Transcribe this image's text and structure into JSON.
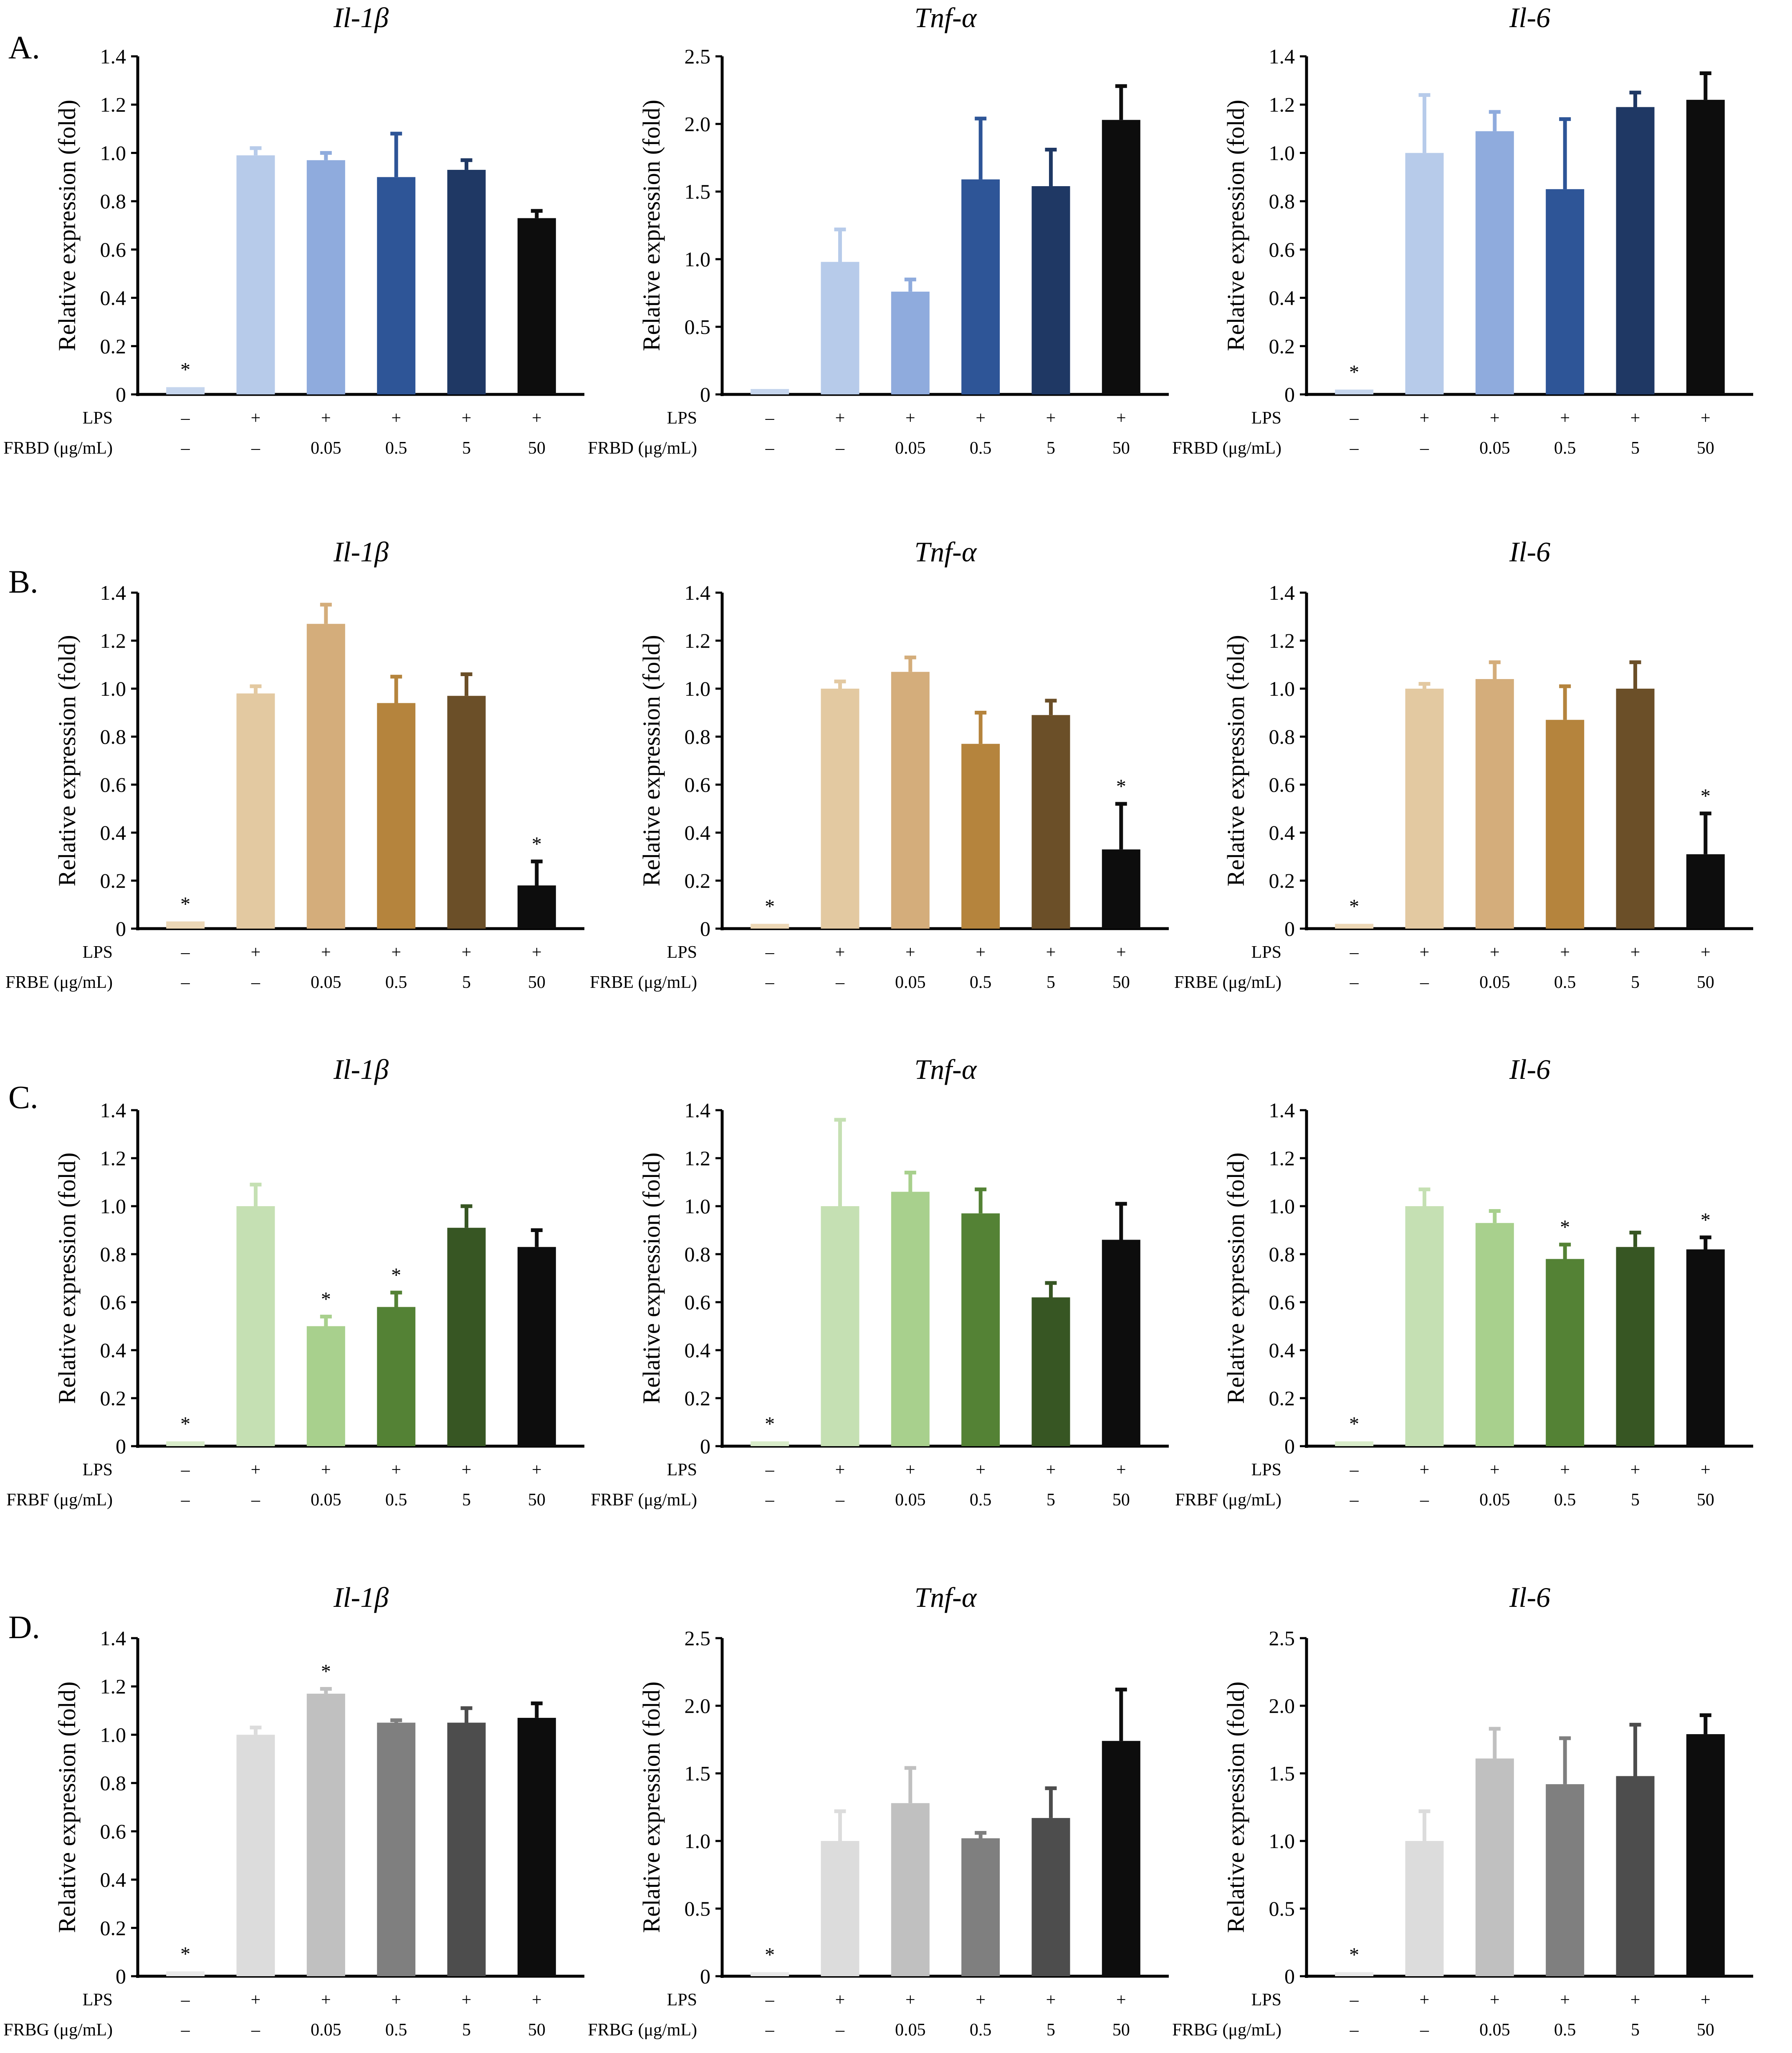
{
  "chart_data": [
    {
      "type": "bar",
      "panel": "A.",
      "title": "Il-1β",
      "ylabel": "Relative expression (fold)",
      "ylim": [
        0,
        1.4
      ],
      "yticks": [
        "0",
        "0.2",
        "0.4",
        "0.6",
        "0.8",
        "1.0",
        "1.2",
        "1.4"
      ],
      "rows": [
        {
          "label": "LPS",
          "marks": [
            "–",
            "+",
            "+",
            "+",
            "+",
            "+"
          ]
        },
        {
          "label": "FRBD (μg/mL)",
          "marks": [
            "–",
            "–",
            "0.05",
            "0.5",
            "5",
            "50"
          ]
        }
      ],
      "values": [
        0.03,
        0.99,
        0.97,
        0.9,
        0.93,
        0.73
      ],
      "errors": [
        0.0,
        0.03,
        0.03,
        0.18,
        0.04,
        0.03
      ],
      "colors": [
        "#c5d5ed",
        "#b7cbea",
        "#8fabdd",
        "#2e5597",
        "#1f3864",
        "#0d0d0d"
      ],
      "significant": [
        true,
        false,
        false,
        false,
        false,
        false
      ]
    },
    {
      "type": "bar",
      "panel": "",
      "title": "Tnf-α",
      "ylabel": "Relative expression (fold)",
      "ylim": [
        0,
        2.5
      ],
      "yticks": [
        "0",
        "0.5",
        "1.0",
        "1.5",
        "2.0",
        "2.5"
      ],
      "rows": [
        {
          "label": "LPS",
          "marks": [
            "–",
            "+",
            "+",
            "+",
            "+",
            "+"
          ]
        },
        {
          "label": "FRBD (μg/mL)",
          "marks": [
            "–",
            "–",
            "0.05",
            "0.5",
            "5",
            "50"
          ]
        }
      ],
      "values": [
        0.04,
        0.98,
        0.76,
        1.59,
        1.54,
        2.03
      ],
      "errors": [
        0.0,
        0.24,
        0.09,
        0.45,
        0.27,
        0.25
      ],
      "colors": [
        "#c5d5ed",
        "#b7cbea",
        "#8fabdd",
        "#2e5597",
        "#1f3864",
        "#0d0d0d"
      ],
      "significant": [
        false,
        false,
        false,
        false,
        false,
        false
      ]
    },
    {
      "type": "bar",
      "panel": "",
      "title": "Il-6",
      "ylabel": "Relative expression (fold)",
      "ylim": [
        0,
        1.4
      ],
      "yticks": [
        "0",
        "0.2",
        "0.4",
        "0.6",
        "0.8",
        "1.0",
        "1.2",
        "1.4"
      ],
      "rows": [
        {
          "label": "LPS",
          "marks": [
            "–",
            "+",
            "+",
            "+",
            "+",
            "+"
          ]
        },
        {
          "label": "FRBD (μg/mL)",
          "marks": [
            "–",
            "–",
            "0.05",
            "0.5",
            "5",
            "50"
          ]
        }
      ],
      "values": [
        0.02,
        1.0,
        1.09,
        0.85,
        1.19,
        1.22
      ],
      "errors": [
        0.0,
        0.24,
        0.08,
        0.29,
        0.06,
        0.11
      ],
      "colors": [
        "#c5d5ed",
        "#b7cbea",
        "#8fabdd",
        "#2e5597",
        "#1f3864",
        "#0d0d0d"
      ],
      "significant": [
        true,
        false,
        false,
        false,
        false,
        false
      ]
    },
    {
      "type": "bar",
      "panel": "B.",
      "title": "Il-1β",
      "ylabel": "Relative expression (fold)",
      "ylim": [
        0,
        1.4
      ],
      "yticks": [
        "0",
        "0.2",
        "0.4",
        "0.6",
        "0.8",
        "1.0",
        "1.2",
        "1.4"
      ],
      "rows": [
        {
          "label": "LPS",
          "marks": [
            "–",
            "+",
            "+",
            "+",
            "+",
            "+"
          ]
        },
        {
          "label": "FRBE (μg/mL)",
          "marks": [
            "–",
            "–",
            "0.05",
            "0.5",
            "5",
            "50"
          ]
        }
      ],
      "values": [
        0.03,
        0.98,
        1.27,
        0.94,
        0.97,
        0.18
      ],
      "errors": [
        0.0,
        0.03,
        0.08,
        0.11,
        0.09,
        0.1
      ],
      "colors": [
        "#ecd7b6",
        "#e3c9a1",
        "#d4ad7b",
        "#b5843d",
        "#6b4f28",
        "#0d0d0d"
      ],
      "significant": [
        true,
        false,
        false,
        false,
        false,
        true
      ]
    },
    {
      "type": "bar",
      "panel": "",
      "title": "Tnf-α",
      "ylabel": "Relative expression (fold)",
      "ylim": [
        0,
        1.4
      ],
      "yticks": [
        "0",
        "0.2",
        "0.4",
        "0.6",
        "0.8",
        "1.0",
        "1.2",
        "1.4"
      ],
      "rows": [
        {
          "label": "LPS",
          "marks": [
            "–",
            "+",
            "+",
            "+",
            "+",
            "+"
          ]
        },
        {
          "label": "FRBE (μg/mL)",
          "marks": [
            "–",
            "–",
            "0.05",
            "0.5",
            "5",
            "50"
          ]
        }
      ],
      "values": [
        0.02,
        1.0,
        1.07,
        0.77,
        0.89,
        0.33
      ],
      "errors": [
        0.0,
        0.03,
        0.06,
        0.13,
        0.06,
        0.19
      ],
      "colors": [
        "#ecd7b6",
        "#e3c9a1",
        "#d4ad7b",
        "#b5843d",
        "#6b4f28",
        "#0d0d0d"
      ],
      "significant": [
        true,
        false,
        false,
        false,
        false,
        true
      ]
    },
    {
      "type": "bar",
      "panel": "",
      "title": "Il-6",
      "ylabel": "Relative expression (fold)",
      "ylim": [
        0,
        1.4
      ],
      "yticks": [
        "0",
        "0.2",
        "0.4",
        "0.6",
        "0.8",
        "1.0",
        "1.2",
        "1.4"
      ],
      "rows": [
        {
          "label": "LPS",
          "marks": [
            "–",
            "+",
            "+",
            "+",
            "+",
            "+"
          ]
        },
        {
          "label": "FRBE (μg/mL)",
          "marks": [
            "–",
            "–",
            "0.05",
            "0.5",
            "5",
            "50"
          ]
        }
      ],
      "values": [
        0.02,
        1.0,
        1.04,
        0.87,
        1.0,
        0.31
      ],
      "errors": [
        0.0,
        0.02,
        0.07,
        0.14,
        0.11,
        0.17
      ],
      "colors": [
        "#ecd7b6",
        "#e3c9a1",
        "#d4ad7b",
        "#b5843d",
        "#6b4f28",
        "#0d0d0d"
      ],
      "significant": [
        true,
        false,
        false,
        false,
        false,
        true
      ]
    },
    {
      "type": "bar",
      "panel": "C.",
      "title": "Il-1β",
      "ylabel": "Relative expression (fold)",
      "ylim": [
        0,
        1.4
      ],
      "yticks": [
        "0",
        "0.2",
        "0.4",
        "0.6",
        "0.8",
        "1.0",
        "1.2",
        "1.4"
      ],
      "rows": [
        {
          "label": "LPS",
          "marks": [
            "–",
            "+",
            "+",
            "+",
            "+",
            "+"
          ]
        },
        {
          "label": "FRBF (μg/mL)",
          "marks": [
            "–",
            "–",
            "0.05",
            "0.5",
            "5",
            "50"
          ]
        }
      ],
      "values": [
        0.02,
        1.0,
        0.5,
        0.58,
        0.91,
        0.83
      ],
      "errors": [
        0.0,
        0.09,
        0.04,
        0.06,
        0.09,
        0.07
      ],
      "colors": [
        "#d8ecc9",
        "#c5e0b3",
        "#a8d08d",
        "#548235",
        "#375623",
        "#0d0d0d"
      ],
      "significant": [
        true,
        false,
        true,
        true,
        false,
        false
      ]
    },
    {
      "type": "bar",
      "panel": "",
      "title": "Tnf-α",
      "ylabel": "Relative expression (fold)",
      "ylim": [
        0,
        1.4
      ],
      "yticks": [
        "0",
        "0.2",
        "0.4",
        "0.6",
        "0.8",
        "1.0",
        "1.2",
        "1.4"
      ],
      "rows": [
        {
          "label": "LPS",
          "marks": [
            "–",
            "+",
            "+",
            "+",
            "+",
            "+"
          ]
        },
        {
          "label": "FRBF (μg/mL)",
          "marks": [
            "–",
            "–",
            "0.05",
            "0.5",
            "5",
            "50"
          ]
        }
      ],
      "values": [
        0.02,
        1.0,
        1.06,
        0.97,
        0.62,
        0.86
      ],
      "errors": [
        0.0,
        0.36,
        0.08,
        0.1,
        0.06,
        0.15
      ],
      "colors": [
        "#d8ecc9",
        "#c5e0b3",
        "#a8d08d",
        "#548235",
        "#375623",
        "#0d0d0d"
      ],
      "significant": [
        true,
        false,
        false,
        false,
        false,
        false
      ]
    },
    {
      "type": "bar",
      "panel": "",
      "title": "Il-6",
      "ylabel": "Relative expression (fold)",
      "ylim": [
        0,
        1.4
      ],
      "yticks": [
        "0",
        "0.2",
        "0.4",
        "0.6",
        "0.8",
        "1.0",
        "1.2",
        "1.4"
      ],
      "rows": [
        {
          "label": "LPS",
          "marks": [
            "–",
            "+",
            "+",
            "+",
            "+",
            "+"
          ]
        },
        {
          "label": "FRBF (μg/mL)",
          "marks": [
            "–",
            "–",
            "0.05",
            "0.5",
            "5",
            "50"
          ]
        }
      ],
      "values": [
        0.02,
        1.0,
        0.93,
        0.78,
        0.83,
        0.82
      ],
      "errors": [
        0.0,
        0.07,
        0.05,
        0.06,
        0.06,
        0.05
      ],
      "colors": [
        "#d8ecc9",
        "#c5e0b3",
        "#a8d08d",
        "#548235",
        "#375623",
        "#0d0d0d"
      ],
      "significant": [
        true,
        false,
        false,
        true,
        false,
        true
      ]
    },
    {
      "type": "bar",
      "panel": "D.",
      "title": "Il-1β",
      "ylabel": "Relative expression (fold)",
      "ylim": [
        0,
        1.4
      ],
      "yticks": [
        "0",
        "0.2",
        "0.4",
        "0.6",
        "0.8",
        "1.0",
        "1.2",
        "1.4"
      ],
      "rows": [
        {
          "label": "LPS",
          "marks": [
            "–",
            "+",
            "+",
            "+",
            "+",
            "+"
          ]
        },
        {
          "label": "FRBG (μg/mL)",
          "marks": [
            "–",
            "–",
            "0.05",
            "0.5",
            "5",
            "50"
          ]
        }
      ],
      "values": [
        0.02,
        1.0,
        1.17,
        1.05,
        1.05,
        1.07
      ],
      "errors": [
        0.0,
        0.03,
        0.02,
        0.01,
        0.06,
        0.06
      ],
      "colors": [
        "#e9e9e9",
        "#dcdcdc",
        "#c0c0c0",
        "#7f7f7f",
        "#4d4d4d",
        "#0d0d0d"
      ],
      "significant": [
        true,
        false,
        true,
        false,
        false,
        false
      ]
    },
    {
      "type": "bar",
      "panel": "",
      "title": "Tnf-α",
      "ylabel": "Relative expression (fold)",
      "ylim": [
        0,
        2.5
      ],
      "yticks": [
        "0",
        "0.5",
        "1.0",
        "1.5",
        "2.0",
        "2.5"
      ],
      "rows": [
        {
          "label": "LPS",
          "marks": [
            "–",
            "+",
            "+",
            "+",
            "+",
            "+"
          ]
        },
        {
          "label": "FRBG (μg/mL)",
          "marks": [
            "–",
            "–",
            "0.05",
            "0.5",
            "5",
            "50"
          ]
        }
      ],
      "values": [
        0.03,
        1.0,
        1.28,
        1.02,
        1.17,
        1.74
      ],
      "errors": [
        0.0,
        0.22,
        0.26,
        0.04,
        0.22,
        0.38
      ],
      "colors": [
        "#e9e9e9",
        "#dcdcdc",
        "#c0c0c0",
        "#7f7f7f",
        "#4d4d4d",
        "#0d0d0d"
      ],
      "significant": [
        true,
        false,
        false,
        false,
        false,
        false
      ]
    },
    {
      "type": "bar",
      "panel": "",
      "title": "Il-6",
      "ylabel": "Relative expression (fold)",
      "ylim": [
        0,
        2.5
      ],
      "yticks": [
        "0",
        "0.5",
        "1.0",
        "1.5",
        "2.0",
        "2.5"
      ],
      "rows": [
        {
          "label": "LPS",
          "marks": [
            "–",
            "+",
            "+",
            "+",
            "+",
            "+"
          ]
        },
        {
          "label": "FRBG (μg/mL)",
          "marks": [
            "–",
            "–",
            "0.05",
            "0.5",
            "5",
            "50"
          ]
        }
      ],
      "values": [
        0.03,
        1.0,
        1.61,
        1.42,
        1.48,
        1.79
      ],
      "errors": [
        0.0,
        0.22,
        0.22,
        0.34,
        0.38,
        0.14
      ],
      "colors": [
        "#e9e9e9",
        "#dcdcdc",
        "#c0c0c0",
        "#7f7f7f",
        "#4d4d4d",
        "#0d0d0d"
      ],
      "significant": [
        true,
        false,
        false,
        false,
        false,
        false
      ]
    }
  ]
}
